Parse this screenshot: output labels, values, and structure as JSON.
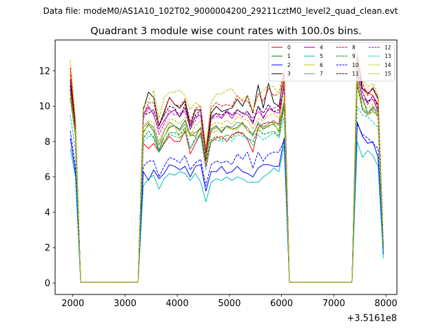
{
  "figure": {
    "suptitle": "Data file: modeM0/AS1A10_102T02_9000004200_29211cztM0_level2_quad_clean.evt"
  },
  "chart_data": {
    "type": "line",
    "title": "Quadrant 3 module wise count rates with 100.0s bins.",
    "xlabel": "",
    "ylabel": "",
    "x_offset_label": "+3.5161e8",
    "xlim": [
      1660,
      8210
    ],
    "ylim": [
      -0.65,
      13.75
    ],
    "xticks": [
      2000,
      3000,
      4000,
      5000,
      6000,
      7000,
      8000
    ],
    "yticks": [
      0,
      2,
      4,
      6,
      8,
      10,
      12
    ],
    "xtick_labels": [
      "2000",
      "3000",
      "4000",
      "5000",
      "6000",
      "7000",
      "8000"
    ],
    "ytick_labels": [
      "0",
      "2",
      "4",
      "6",
      "8",
      "10",
      "12"
    ],
    "grid": false,
    "legend": {
      "placement": "top-right",
      "columns": 4
    },
    "x": [
      1950,
      2050,
      2150,
      3250,
      3350,
      3450,
      3550,
      3650,
      3750,
      3850,
      3950,
      4050,
      4150,
      4250,
      4350,
      4450,
      4550,
      4650,
      4750,
      4850,
      4950,
      5050,
      5150,
      5250,
      5350,
      5450,
      5550,
      5650,
      5750,
      5850,
      5950,
      6050,
      6150,
      6250,
      7350,
      7450,
      7550,
      7650,
      7750,
      7850,
      7950
    ],
    "series": [
      {
        "name": "0",
        "color": "#ff0000",
        "dash": "solid",
        "values": [
          12.2,
          8.8,
          0.05,
          0.05,
          7.9,
          7.6,
          7.9,
          7.4,
          7.9,
          8.3,
          8.0,
          8.0,
          8.6,
          7.3,
          7.9,
          8.5,
          6.6,
          8.0,
          8.2,
          8.3,
          8.0,
          8.4,
          8.5,
          8.5,
          8.1,
          7.4,
          8.8,
          9.0,
          9.1,
          9.1,
          9.0,
          11.6,
          0.05,
          0.05,
          0.05,
          12.1,
          11.0,
          10.8,
          10.6,
          10.1,
          2.0
        ]
      },
      {
        "name": "1",
        "color": "#008000",
        "dash": "solid",
        "values": [
          10.9,
          8.5,
          0.05,
          0.05,
          8.5,
          9.0,
          8.6,
          7.5,
          8.3,
          8.8,
          8.9,
          8.7,
          9.2,
          8.4,
          8.3,
          8.8,
          7.3,
          8.7,
          8.9,
          8.5,
          8.9,
          8.7,
          8.8,
          9.1,
          8.6,
          8.4,
          9.0,
          8.7,
          8.9,
          9.0,
          8.6,
          10.2,
          0.05,
          0.05,
          0.05,
          11.8,
          10.5,
          9.6,
          9.9,
          9.7,
          2.1
        ]
      },
      {
        "name": "2",
        "color": "#0000ff",
        "dash": "solid",
        "values": [
          8.2,
          6.2,
          0.05,
          0.05,
          6.3,
          5.8,
          6.4,
          5.9,
          6.2,
          6.7,
          6.6,
          6.4,
          6.6,
          6.0,
          6.6,
          6.7,
          5.2,
          6.3,
          6.3,
          6.6,
          6.2,
          6.3,
          6.6,
          6.3,
          6.2,
          6.0,
          6.5,
          6.7,
          6.7,
          6.6,
          6.6,
          8.2,
          0.05,
          0.05,
          0.05,
          9.1,
          8.3,
          7.9,
          8.0,
          7.1,
          1.6
        ]
      },
      {
        "name": "3",
        "color": "#000000",
        "dash": "solid",
        "values": [
          11.5,
          9.0,
          0.05,
          0.05,
          9.8,
          10.8,
          10.5,
          8.9,
          9.7,
          10.5,
          10.1,
          9.9,
          10.3,
          8.9,
          9.8,
          9.8,
          7.3,
          9.6,
          10.0,
          9.7,
          9.8,
          9.9,
          10.4,
          10.0,
          10.6,
          9.6,
          11.2,
          9.9,
          11.3,
          10.2,
          10.0,
          11.9,
          0.05,
          0.05,
          0.05,
          12.8,
          11.0,
          10.7,
          11.0,
          10.4,
          2.2
        ]
      },
      {
        "name": "4",
        "color": "#bf00bf",
        "dash": "solid",
        "values": [
          11.0,
          8.7,
          0.05,
          0.05,
          9.5,
          10.0,
          9.5,
          8.7,
          9.2,
          9.6,
          9.8,
          9.4,
          9.9,
          8.9,
          9.4,
          9.5,
          6.9,
          9.3,
          9.6,
          9.3,
          9.7,
          9.3,
          9.8,
          9.6,
          9.5,
          9.0,
          10.0,
          9.3,
          9.9,
          9.7,
          9.6,
          11.2,
          0.05,
          0.05,
          0.05,
          12.0,
          10.4,
          10.3,
          10.4,
          9.7,
          2.0
        ]
      },
      {
        "name": "5",
        "color": "#00bfbf",
        "dash": "solid",
        "values": [
          7.6,
          6.0,
          0.05,
          0.05,
          5.5,
          5.9,
          6.1,
          5.3,
          5.9,
          6.2,
          6.1,
          6.3,
          6.2,
          5.8,
          6.2,
          5.7,
          4.6,
          5.7,
          5.9,
          5.8,
          6.0,
          5.8,
          6.0,
          5.9,
          5.7,
          5.7,
          5.7,
          6.0,
          6.2,
          6.5,
          6.3,
          7.8,
          0.05,
          0.05,
          0.05,
          8.0,
          7.1,
          7.5,
          7.2,
          6.6,
          1.4
        ]
      },
      {
        "name": "6",
        "color": "#bfbf00",
        "dash": "solid",
        "values": [
          10.4,
          8.3,
          0.05,
          0.05,
          8.6,
          8.9,
          8.8,
          7.8,
          8.3,
          8.9,
          8.9,
          8.2,
          8.7,
          8.5,
          8.5,
          8.7,
          7.0,
          8.5,
          8.6,
          8.8,
          8.8,
          8.7,
          8.7,
          9.0,
          8.6,
          8.5,
          8.7,
          8.9,
          8.8,
          9.1,
          8.5,
          10.0,
          0.05,
          0.05,
          0.05,
          11.3,
          9.8,
          9.5,
          9.7,
          9.5,
          2.0
        ]
      },
      {
        "name": "7",
        "color": "#808080",
        "dash": "solid",
        "values": [
          10.5,
          8.4,
          0.05,
          0.05,
          8.8,
          9.1,
          8.8,
          7.8,
          8.6,
          9.1,
          8.9,
          8.6,
          9.0,
          8.3,
          8.5,
          8.8,
          7.1,
          8.6,
          8.8,
          8.6,
          8.9,
          8.8,
          9.1,
          9.0,
          8.8,
          8.3,
          9.1,
          8.8,
          9.0,
          9.2,
          8.9,
          10.3,
          0.05,
          0.05,
          0.05,
          11.5,
          9.9,
          9.6,
          10.0,
          9.5,
          2.0
        ]
      },
      {
        "name": "8",
        "color": "#ff0000",
        "dash": "dashed",
        "values": [
          11.8,
          9.1,
          0.05,
          0.05,
          9.5,
          10.2,
          10.2,
          8.9,
          9.6,
          10.5,
          10.1,
          10.0,
          10.4,
          9.1,
          9.9,
          10.0,
          7.5,
          9.9,
          10.2,
          10.0,
          10.1,
          10.0,
          10.6,
          10.3,
          10.3,
          9.7,
          10.7,
          10.3,
          11.0,
          10.6,
          10.7,
          12.0,
          0.05,
          0.05,
          0.05,
          12.9,
          11.3,
          10.6,
          11.1,
          10.5,
          2.2
        ]
      },
      {
        "name": "9",
        "color": "#008000",
        "dash": "dashed",
        "values": [
          10.7,
          8.3,
          0.05,
          0.05,
          8.2,
          8.6,
          8.2,
          7.4,
          8.0,
          8.5,
          8.5,
          8.4,
          8.8,
          7.6,
          8.2,
          8.4,
          6.9,
          8.1,
          8.3,
          8.1,
          8.4,
          8.2,
          8.6,
          8.4,
          8.2,
          8.0,
          8.7,
          8.4,
          8.5,
          8.6,
          8.3,
          10.0,
          0.05,
          0.05,
          0.05,
          11.2,
          9.8,
          9.5,
          9.8,
          9.4,
          2.0
        ]
      },
      {
        "name": "10",
        "color": "#0000ff",
        "dash": "dashed",
        "values": [
          8.6,
          6.6,
          0.05,
          0.05,
          6.6,
          6.9,
          6.9,
          6.0,
          6.6,
          7.1,
          7.0,
          6.8,
          7.2,
          6.4,
          6.8,
          7.0,
          5.5,
          6.7,
          6.9,
          6.8,
          6.9,
          6.7,
          7.3,
          7.0,
          7.4,
          6.5,
          7.4,
          6.9,
          7.3,
          7.4,
          7.4,
          8.1,
          0.05,
          0.05,
          0.05,
          9.0,
          8.4,
          8.2,
          7.9,
          7.6,
          1.7
        ]
      },
      {
        "name": "11",
        "color": "#000000",
        "dash": "dashed",
        "values": [
          11.2,
          8.8,
          0.05,
          0.05,
          9.5,
          9.6,
          9.8,
          8.9,
          9.5,
          10.0,
          9.9,
          9.4,
          10.1,
          8.7,
          9.5,
          9.8,
          7.0,
          9.4,
          9.6,
          9.5,
          9.7,
          9.5,
          9.8,
          9.6,
          9.7,
          9.1,
          10.0,
          9.6,
          10.1,
          9.7,
          9.8,
          11.0,
          0.05,
          0.05,
          0.05,
          12.3,
          10.8,
          10.2,
          10.6,
          10.0,
          2.1
        ]
      },
      {
        "name": "12",
        "color": "#bf00bf",
        "dash": "dashed",
        "values": [
          11.1,
          8.7,
          0.05,
          0.05,
          9.3,
          9.9,
          9.6,
          8.4,
          9.0,
          9.8,
          9.5,
          9.6,
          9.7,
          8.7,
          9.2,
          9.8,
          7.2,
          9.3,
          9.4,
          9.4,
          9.8,
          9.5,
          9.6,
          9.4,
          9.7,
          9.3,
          9.7,
          9.4,
          9.8,
          9.9,
          10.0,
          11.0,
          0.05,
          0.05,
          0.05,
          12.2,
          10.8,
          10.1,
          10.6,
          9.8,
          2.1
        ]
      },
      {
        "name": "13",
        "color": "#00bfbf",
        "dash": "dashed",
        "values": [
          9.5,
          7.5,
          0.05,
          0.05,
          8.0,
          8.3,
          8.3,
          7.4,
          8.0,
          8.4,
          8.3,
          8.2,
          8.5,
          7.6,
          8.1,
          8.3,
          6.4,
          8.0,
          8.1,
          8.0,
          8.2,
          8.0,
          8.4,
          8.3,
          8.2,
          7.8,
          8.4,
          8.1,
          8.3,
          8.5,
          8.2,
          9.4,
          0.05,
          0.05,
          0.05,
          10.0,
          9.5,
          9.4,
          9.1,
          8.8,
          1.9
        ]
      },
      {
        "name": "14",
        "color": "#bfbf00",
        "dash": "dashed",
        "values": [
          12.6,
          9.3,
          0.05,
          0.05,
          10.0,
          10.3,
          10.9,
          9.3,
          10.5,
          10.8,
          10.8,
          10.9,
          10.6,
          9.8,
          10.2,
          10.0,
          7.7,
          10.2,
          10.7,
          10.7,
          10.9,
          11.0,
          10.5,
          10.4,
          10.6,
          9.7,
          10.6,
          10.9,
          11.2,
          11.1,
          10.7,
          11.6,
          0.05,
          0.05,
          0.05,
          13.1,
          11.5,
          11.1,
          11.3,
          10.7,
          2.3
        ]
      },
      {
        "name": "15",
        "color": "#bfbf00",
        "dash": "dashed",
        "values": [
          10.8,
          8.5,
          0.05,
          0.05,
          8.9,
          9.2,
          9.1,
          8.0,
          8.7,
          9.3,
          9.2,
          9.0,
          9.4,
          8.3,
          8.9,
          9.2,
          7.1,
          8.9,
          9.1,
          9.0,
          9.2,
          9.0,
          9.4,
          9.3,
          9.2,
          8.7,
          9.3,
          9.2,
          9.5,
          9.6,
          9.3,
          10.6,
          0.05,
          0.05,
          0.05,
          11.6,
          10.2,
          9.9,
          10.1,
          9.6,
          2.1
        ]
      }
    ]
  }
}
